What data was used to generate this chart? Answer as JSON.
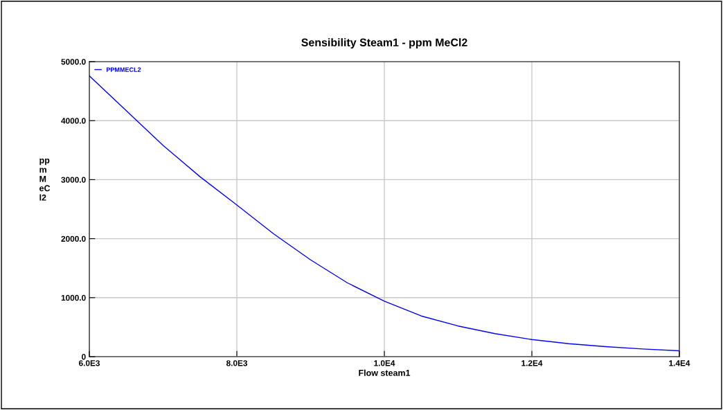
{
  "chart_data": {
    "type": "line",
    "title": "Sensibility Steam1 - ppm MeCl2",
    "xlabel": "Flow steam1",
    "ylabel": "pp\nm\nM\neC\nl2",
    "x": [
      6000,
      6500,
      7000,
      7500,
      8000,
      8500,
      9000,
      9500,
      10000,
      10500,
      11000,
      11500,
      12000,
      12500,
      13000,
      13500,
      14000
    ],
    "series": [
      {
        "name": "PPMMECL2",
        "color": "#0000ff",
        "values": [
          4760,
          4170,
          3580,
          3050,
          2570,
          2080,
          1640,
          1250,
          940,
          690,
          520,
          390,
          290,
          220,
          170,
          130,
          100
        ]
      }
    ],
    "xlim": [
      6000,
      14000
    ],
    "xticks": [
      {
        "value": 6000,
        "label": "6.0E3"
      },
      {
        "value": 8000,
        "label": "8.0E3"
      },
      {
        "value": 10000,
        "label": "1.0E4"
      },
      {
        "value": 12000,
        "label": "1.2E4"
      },
      {
        "value": 14000,
        "label": "1.4E4"
      }
    ],
    "ylim": [
      0,
      5000
    ],
    "yticks": [
      0,
      {
        "value": 1000,
        "label": "1000.0"
      },
      {
        "value": 2000,
        "label": "2000.0"
      },
      {
        "value": 3000,
        "label": "3000.0"
      },
      {
        "value": 4000,
        "label": "4000.0"
      },
      {
        "value": 5000,
        "label": "5000.0"
      }
    ],
    "grid": true,
    "legend": "top left",
    "marker": "none",
    "line_style": "solid"
  }
}
